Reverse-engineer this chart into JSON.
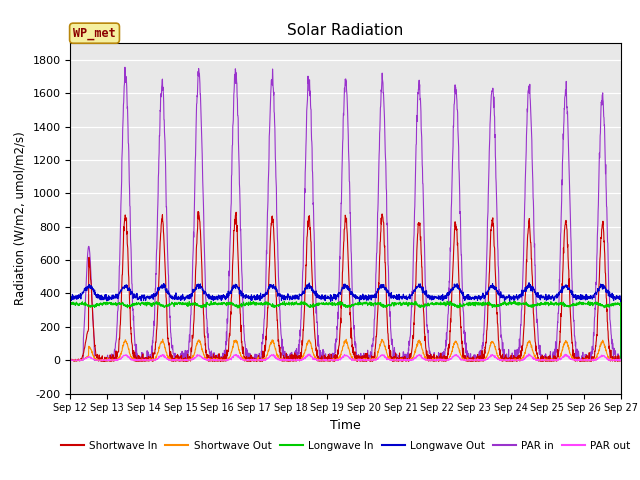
{
  "title": "Solar Radiation",
  "xlabel": "Time",
  "ylabel": "Radiation (W/m2, umol/m2/s)",
  "ylim": [
    -200,
    1900
  ],
  "yticks": [
    -200,
    0,
    200,
    400,
    600,
    800,
    1000,
    1200,
    1400,
    1600,
    1800
  ],
  "x_labels": [
    "Sep 12",
    "Sep 13",
    "Sep 14",
    "Sep 15",
    "Sep 16",
    "Sep 17",
    "Sep 18",
    "Sep 19",
    "Sep 20",
    "Sep 21",
    "Sep 22",
    "Sep 23",
    "Sep 24",
    "Sep 25",
    "Sep 26",
    "Sep 27"
  ],
  "num_days": 15,
  "background_color": "#e8e8e8",
  "legend_label": "WP_met",
  "series": {
    "shortwave_in": {
      "color": "#cc0000",
      "label": "Shortwave In"
    },
    "shortwave_out": {
      "color": "#ff8c00",
      "label": "Shortwave Out"
    },
    "longwave_in": {
      "color": "#00cc00",
      "label": "Longwave In"
    },
    "longwave_out": {
      "color": "#0000cc",
      "label": "Longwave Out"
    },
    "par_in": {
      "color": "#9933cc",
      "label": "PAR in"
    },
    "par_out": {
      "color": "#ff44ff",
      "label": "PAR out"
    }
  }
}
